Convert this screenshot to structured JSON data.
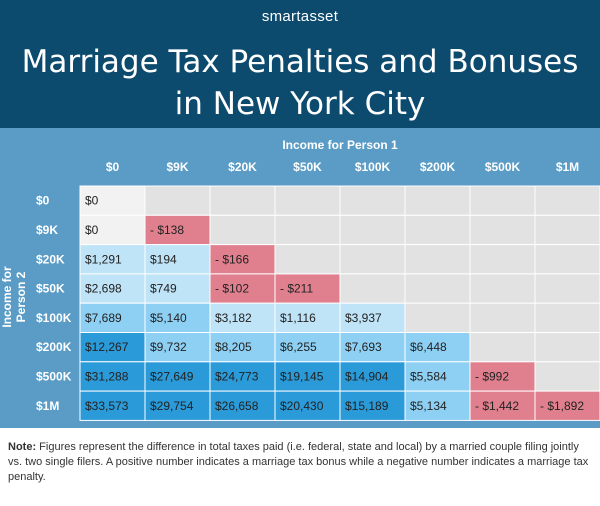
{
  "brand": "smartasset",
  "title_line1": "Marriage Tax Penalties and Bonuses",
  "title_line2": "in New York City",
  "chart_data": {
    "type": "table",
    "col_label": "Income for Person 1",
    "row_label": "Income for Person 2",
    "columns": [
      "$0",
      "$9K",
      "$20K",
      "$50K",
      "$100K",
      "$200K",
      "$500K",
      "$1M"
    ],
    "rows": [
      {
        "label": "$0",
        "cells": [
          "$0"
        ]
      },
      {
        "label": "$9K",
        "cells": [
          "$0",
          "- $138"
        ]
      },
      {
        "label": "$20K",
        "cells": [
          "$1,291",
          "$194",
          "- $166"
        ]
      },
      {
        "label": "$50K",
        "cells": [
          "$2,698",
          "$749",
          "- $102",
          "- $211"
        ]
      },
      {
        "label": "$100K",
        "cells": [
          "$7,689",
          "$5,140",
          "$3,182",
          "$1,116",
          "$3,937"
        ]
      },
      {
        "label": "$200K",
        "cells": [
          "$12,267",
          "$9,732",
          "$8,205",
          "$6,255",
          "$7,693",
          "$6,448"
        ]
      },
      {
        "label": "$500K",
        "cells": [
          "$31,288",
          "$27,649",
          "$24,773",
          "$19,145",
          "$14,904",
          "$5,584",
          "- $992"
        ]
      },
      {
        "label": "$1M",
        "cells": [
          "$33,573",
          "$29,754",
          "$26,658",
          "$20,430",
          "$15,189",
          "$5,134",
          "- $1,442",
          "- $1,892"
        ]
      }
    ],
    "values": [
      [
        0
      ],
      [
        0,
        -138
      ],
      [
        1291,
        194,
        -166
      ],
      [
        2698,
        749,
        -102,
        -211
      ],
      [
        7689,
        5140,
        3182,
        1116,
        3937
      ],
      [
        12267,
        9732,
        8205,
        6255,
        7693,
        6448
      ],
      [
        31288,
        27649,
        24773,
        19145,
        14904,
        5584,
        -992
      ],
      [
        33573,
        29754,
        26658,
        20430,
        15189,
        5134,
        -1442,
        -1892
      ]
    ]
  },
  "colors": {
    "header_bg": "#0c4a6e",
    "table_bg": "#5b9cc6",
    "empty_cell": "#e2e2e2",
    "zero_cell": "#f2f2f2",
    "penalty": "#e0808f",
    "bonus_light": "#bfe3f7",
    "bonus_mid": "#8ed0f3",
    "bonus_dark": "#2a9ad8",
    "grid_line": "#ffffff"
  },
  "note_label": "Note:",
  "note_text": " Figures represent the difference in total taxes paid (i.e. federal, state and local) by a married couple filing jointly vs. two single filers. A positive number indicates a marriage tax bonus while a negative number indicates a marriage tax penalty."
}
